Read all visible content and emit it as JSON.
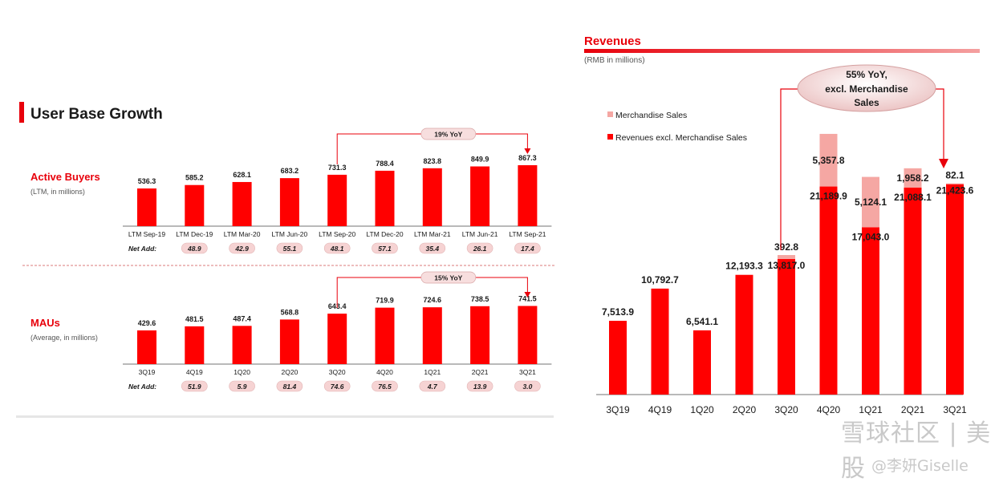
{
  "left_title": "User Base Growth",
  "colors": {
    "accent": "#e8000b",
    "bar": "#ff0000",
    "pill": "#f6d3d3",
    "merch": "#f5a7a3",
    "text": "#1a1a1a"
  },
  "net_add_label": "Net Add:",
  "chart_data": [
    {
      "type": "bar",
      "name": "active-buyers",
      "title": "Active Buyers",
      "subtitle": "(LTM, in millions)",
      "categories": [
        "LTM Sep-19",
        "LTM Dec-19",
        "LTM Mar-20",
        "LTM Jun-20",
        "LTM Sep-20",
        "LTM Dec-20",
        "LTM Mar-21",
        "LTM Jun-21",
        "LTM Sep-21"
      ],
      "values": [
        536.3,
        585.2,
        628.1,
        683.2,
        731.3,
        788.4,
        823.8,
        849.9,
        867.3
      ],
      "value_labels": [
        "536.3",
        "585.2",
        "628.1",
        "683.2",
        "731.3",
        "788.4",
        "823.8",
        "849.9",
        "867.3"
      ],
      "net_add": [
        "48.9",
        "42.9",
        "55.1",
        "48.1",
        "57.1",
        "35.4",
        "26.1",
        "17.4"
      ],
      "annotation": "19% YoY"
    },
    {
      "type": "bar",
      "name": "maus",
      "title": "MAUs",
      "subtitle": "(Average, in millions)",
      "categories": [
        "3Q19",
        "4Q19",
        "1Q20",
        "2Q20",
        "3Q20",
        "4Q20",
        "1Q21",
        "2Q21",
        "3Q21"
      ],
      "values": [
        429.6,
        481.5,
        487.4,
        568.8,
        643.4,
        719.9,
        724.6,
        738.5,
        741.5
      ],
      "value_labels": [
        "429.6",
        "481.5",
        "487.4",
        "568.8",
        "643.4",
        "719.9",
        "724.6",
        "738.5",
        "741.5"
      ],
      "net_add": [
        "51.9",
        "5.9",
        "81.4",
        "74.6",
        "76.5",
        "4.7",
        "13.9",
        "3.0"
      ],
      "annotation": "15% YoY"
    },
    {
      "type": "bar",
      "name": "revenues",
      "title": "Revenues",
      "subtitle": "(RMB in millions)",
      "categories": [
        "3Q19",
        "4Q19",
        "1Q20",
        "2Q20",
        "3Q20",
        "4Q20",
        "1Q21",
        "2Q21",
        "3Q21"
      ],
      "series": [
        {
          "name": "Revenues excl. Merchandise Sales",
          "values": [
            7513.9,
            10792.7,
            6541.1,
            12193.3,
            13817.0,
            21189.9,
            17043.0,
            21088.1,
            21423.6
          ],
          "labels": [
            "7,513.9",
            "10,792.7",
            "6,541.1",
            "12,193.3",
            "13,817.0",
            "21,189.9",
            "17,043.0",
            "21,088.1",
            "21,423.6"
          ]
        },
        {
          "name": "Merchandise Sales",
          "values": [
            0,
            0,
            0,
            0,
            392.8,
            5357.8,
            5124.1,
            1958.2,
            82.1
          ],
          "labels": [
            "",
            "",
            "",
            "",
            "392.8",
            "5,357.8",
            "5,124.1",
            "1,958.2",
            "82.1"
          ]
        }
      ],
      "legend": [
        "Merchandise Sales",
        "Revenues excl. Merchandise Sales"
      ],
      "legend_position": "top-left",
      "annotation": [
        "55% YoY,",
        "excl. Merchandise",
        "Sales"
      ],
      "stacked": true
    }
  ],
  "watermark": {
    "line1": "雪球社区 | 美股",
    "line2": "@李妍Giselle"
  }
}
